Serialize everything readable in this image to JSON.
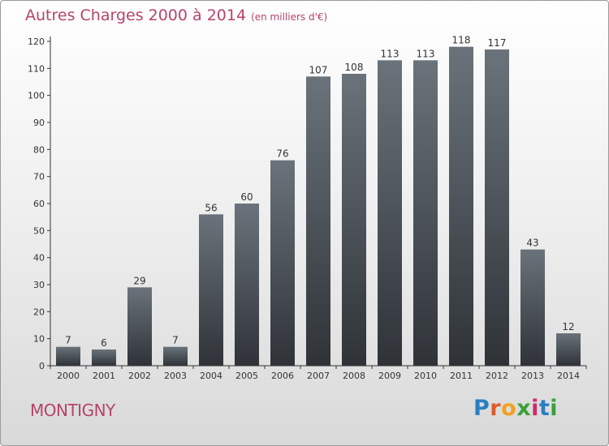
{
  "header": {
    "title": "Autres Charges 2000 à 2014",
    "subtitle": "(en milliers d'€)"
  },
  "footer": {
    "place": "MONTIGNY",
    "logo": "Proxiti"
  },
  "colors": {
    "title": "#b6436a",
    "bar_top": "#6a737b",
    "bar_bottom": "#2f3338",
    "axis": "#333333"
  },
  "chart_data": {
    "type": "bar",
    "title": "Autres Charges 2000 à 2014",
    "subtitle": "(en milliers d'€)",
    "categories": [
      "2000",
      "2001",
      "2002",
      "2003",
      "2004",
      "2005",
      "2006",
      "2007",
      "2008",
      "2009",
      "2010",
      "2011",
      "2012",
      "2013",
      "2014"
    ],
    "values": [
      7,
      6,
      29,
      7,
      56,
      60,
      76,
      107,
      108,
      113,
      113,
      118,
      117,
      43,
      12
    ],
    "ylim": [
      0,
      120
    ],
    "yticks": [
      0,
      10,
      20,
      30,
      40,
      50,
      60,
      70,
      80,
      90,
      100,
      110,
      120
    ],
    "grid": false,
    "data_labels": true
  }
}
